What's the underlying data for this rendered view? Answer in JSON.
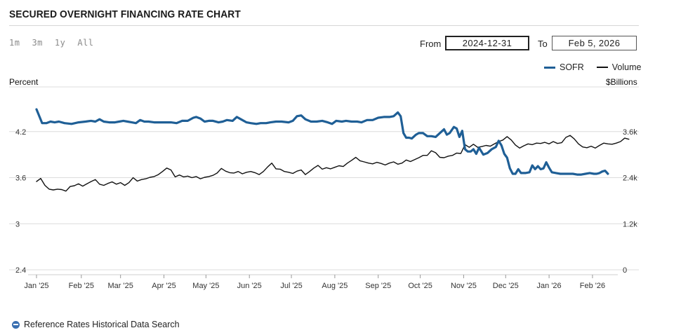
{
  "header": {
    "title": "SECURED OVERNIGHT FINANCING RATE CHART"
  },
  "range_buttons": [
    "1m",
    "3m",
    "1y",
    "All"
  ],
  "date_range": {
    "from_label": "From",
    "from_value": "2024-12-31",
    "to_label": "To",
    "to_value": "Feb 5, 2026"
  },
  "legend": [
    {
      "name": "SOFR",
      "color": "#1f5f96"
    },
    {
      "name": "Volume",
      "color": "#111111"
    }
  ],
  "footer": {
    "link_label": "Reference Rates Historical Data Search"
  },
  "chart_data": {
    "type": "line",
    "left_axis": {
      "title": "Percent",
      "ticks": [
        "4.2",
        "3.6",
        "3",
        "2.4"
      ],
      "range": [
        2.4,
        4.8
      ]
    },
    "right_axis": {
      "title": "$Billions",
      "ticks": [
        "3.6k",
        "2.4k",
        "1.2k",
        "0"
      ],
      "range": [
        0,
        4800
      ]
    },
    "x_ticks": [
      "Jan '25",
      "Feb '25",
      "Mar '25",
      "Apr '25",
      "May '25",
      "Jun '25",
      "Jul '25",
      "Aug '25",
      "Sep '25",
      "Oct '25",
      "Nov '25",
      "Dec '25",
      "Jan '26",
      "Feb '26"
    ],
    "grid": true,
    "legend_position": "top-right",
    "series": [
      {
        "name": "SOFR",
        "axis": "left",
        "color": "#1f5f96",
        "points": [
          [
            0,
            4.49
          ],
          [
            2,
            4.4
          ],
          [
            4,
            4.31
          ],
          [
            7,
            4.31
          ],
          [
            10,
            4.33
          ],
          [
            13,
            4.32
          ],
          [
            16,
            4.33
          ],
          [
            20,
            4.31
          ],
          [
            25,
            4.3
          ],
          [
            30,
            4.32
          ],
          [
            35,
            4.33
          ],
          [
            39,
            4.34
          ],
          [
            42,
            4.33
          ],
          [
            45,
            4.36
          ],
          [
            48,
            4.33
          ],
          [
            52,
            4.32
          ],
          [
            56,
            4.32
          ],
          [
            59,
            4.33
          ],
          [
            62,
            4.34
          ],
          [
            65,
            4.33
          ],
          [
            68,
            4.32
          ],
          [
            71,
            4.31
          ],
          [
            74,
            4.35
          ],
          [
            77,
            4.33
          ],
          [
            80,
            4.33
          ],
          [
            84,
            4.32
          ],
          [
            88,
            4.32
          ],
          [
            92,
            4.32
          ],
          [
            96,
            4.32
          ],
          [
            100,
            4.31
          ],
          [
            104,
            4.34
          ],
          [
            108,
            4.34
          ],
          [
            112,
            4.38
          ],
          [
            114,
            4.39
          ],
          [
            117,
            4.37
          ],
          [
            120,
            4.33
          ],
          [
            123,
            4.34
          ],
          [
            126,
            4.34
          ],
          [
            130,
            4.32
          ],
          [
            133,
            4.33
          ],
          [
            136,
            4.35
          ],
          [
            140,
            4.34
          ],
          [
            143,
            4.39
          ],
          [
            146,
            4.36
          ],
          [
            150,
            4.32
          ],
          [
            153,
            4.31
          ],
          [
            157,
            4.3
          ],
          [
            160,
            4.31
          ],
          [
            164,
            4.31
          ],
          [
            167,
            4.32
          ],
          [
            171,
            4.33
          ],
          [
            175,
            4.33
          ],
          [
            180,
            4.32
          ],
          [
            183,
            4.34
          ],
          [
            186,
            4.4
          ],
          [
            189,
            4.41
          ],
          [
            192,
            4.36
          ],
          [
            196,
            4.33
          ],
          [
            200,
            4.33
          ],
          [
            204,
            4.34
          ],
          [
            208,
            4.32
          ],
          [
            211,
            4.3
          ],
          [
            214,
            4.34
          ],
          [
            218,
            4.33
          ],
          [
            221,
            4.34
          ],
          [
            225,
            4.33
          ],
          [
            229,
            4.33
          ],
          [
            232,
            4.32
          ],
          [
            236,
            4.35
          ],
          [
            240,
            4.35
          ],
          [
            244,
            4.38
          ],
          [
            248,
            4.39
          ],
          [
            252,
            4.39
          ],
          [
            255,
            4.4
          ],
          [
            258,
            4.45
          ],
          [
            260,
            4.4
          ],
          [
            262,
            4.18
          ],
          [
            264,
            4.12
          ],
          [
            266,
            4.12
          ],
          [
            268,
            4.11
          ],
          [
            271,
            4.16
          ],
          [
            273,
            4.18
          ],
          [
            276,
            4.18
          ],
          [
            279,
            4.14
          ],
          [
            282,
            4.14
          ],
          [
            285,
            4.13
          ],
          [
            288,
            4.18
          ],
          [
            291,
            4.23
          ],
          [
            293,
            4.16
          ],
          [
            295,
            4.18
          ],
          [
            298,
            4.26
          ],
          [
            300,
            4.24
          ],
          [
            302,
            4.13
          ],
          [
            304,
            4.21
          ],
          [
            306,
            3.97
          ],
          [
            308,
            3.94
          ],
          [
            310,
            3.94
          ],
          [
            312,
            3.97
          ],
          [
            314,
            3.91
          ],
          [
            316,
            3.99
          ],
          [
            319,
            3.9
          ],
          [
            322,
            3.92
          ],
          [
            325,
            3.97
          ],
          [
            328,
            4.0
          ],
          [
            330,
            4.08
          ],
          [
            332,
            4.02
          ],
          [
            334,
            3.91
          ],
          [
            336,
            3.86
          ],
          [
            338,
            3.72
          ],
          [
            340,
            3.65
          ],
          [
            342,
            3.65
          ],
          [
            344,
            3.71
          ],
          [
            346,
            3.66
          ],
          [
            349,
            3.66
          ],
          [
            352,
            3.67
          ],
          [
            354,
            3.76
          ],
          [
            356,
            3.71
          ],
          [
            358,
            3.75
          ],
          [
            360,
            3.71
          ],
          [
            362,
            3.72
          ],
          [
            364,
            3.8
          ],
          [
            366,
            3.73
          ],
          [
            368,
            3.67
          ],
          [
            371,
            3.66
          ],
          [
            374,
            3.65
          ],
          [
            377,
            3.65
          ],
          [
            380,
            3.65
          ],
          [
            383,
            3.65
          ],
          [
            386,
            3.64
          ],
          [
            389,
            3.64
          ],
          [
            392,
            3.65
          ],
          [
            395,
            3.66
          ],
          [
            398,
            3.65
          ],
          [
            400,
            3.65
          ],
          [
            402,
            3.66
          ],
          [
            404,
            3.68
          ],
          [
            406,
            3.69
          ],
          [
            408,
            3.65
          ]
        ]
      },
      {
        "name": "Volume",
        "axis": "right",
        "color": "#111111",
        "points": [
          [
            0,
            2300
          ],
          [
            3,
            2380
          ],
          [
            6,
            2200
          ],
          [
            9,
            2100
          ],
          [
            12,
            2080
          ],
          [
            15,
            2100
          ],
          [
            18,
            2090
          ],
          [
            21,
            2050
          ],
          [
            24,
            2170
          ],
          [
            27,
            2190
          ],
          [
            30,
            2240
          ],
          [
            33,
            2180
          ],
          [
            36,
            2240
          ],
          [
            39,
            2300
          ],
          [
            42,
            2350
          ],
          [
            45,
            2230
          ],
          [
            48,
            2200
          ],
          [
            51,
            2250
          ],
          [
            54,
            2290
          ],
          [
            57,
            2230
          ],
          [
            60,
            2270
          ],
          [
            63,
            2200
          ],
          [
            66,
            2270
          ],
          [
            69,
            2400
          ],
          [
            72,
            2310
          ],
          [
            75,
            2350
          ],
          [
            78,
            2370
          ],
          [
            81,
            2410
          ],
          [
            84,
            2430
          ],
          [
            87,
            2480
          ],
          [
            90,
            2560
          ],
          [
            93,
            2650
          ],
          [
            96,
            2600
          ],
          [
            99,
            2420
          ],
          [
            102,
            2470
          ],
          [
            105,
            2420
          ],
          [
            108,
            2440
          ],
          [
            111,
            2400
          ],
          [
            114,
            2430
          ],
          [
            117,
            2370
          ],
          [
            120,
            2410
          ],
          [
            123,
            2430
          ],
          [
            126,
            2460
          ],
          [
            129,
            2520
          ],
          [
            132,
            2640
          ],
          [
            135,
            2570
          ],
          [
            138,
            2530
          ],
          [
            141,
            2520
          ],
          [
            144,
            2560
          ],
          [
            147,
            2500
          ],
          [
            150,
            2540
          ],
          [
            153,
            2560
          ],
          [
            156,
            2530
          ],
          [
            159,
            2480
          ],
          [
            162,
            2560
          ],
          [
            165,
            2680
          ],
          [
            168,
            2780
          ],
          [
            171,
            2630
          ],
          [
            174,
            2620
          ],
          [
            177,
            2560
          ],
          [
            180,
            2540
          ],
          [
            183,
            2510
          ],
          [
            186,
            2570
          ],
          [
            189,
            2600
          ],
          [
            192,
            2480
          ],
          [
            195,
            2560
          ],
          [
            198,
            2650
          ],
          [
            201,
            2720
          ],
          [
            204,
            2620
          ],
          [
            207,
            2660
          ],
          [
            210,
            2630
          ],
          [
            213,
            2670
          ],
          [
            216,
            2710
          ],
          [
            219,
            2690
          ],
          [
            222,
            2780
          ],
          [
            225,
            2850
          ],
          [
            228,
            2930
          ],
          [
            231,
            2840
          ],
          [
            234,
            2810
          ],
          [
            237,
            2780
          ],
          [
            240,
            2760
          ],
          [
            243,
            2800
          ],
          [
            246,
            2770
          ],
          [
            249,
            2730
          ],
          [
            252,
            2780
          ],
          [
            255,
            2810
          ],
          [
            258,
            2750
          ],
          [
            261,
            2780
          ],
          [
            264,
            2860
          ],
          [
            267,
            2820
          ],
          [
            270,
            2870
          ],
          [
            273,
            2920
          ],
          [
            276,
            2980
          ],
          [
            279,
            2980
          ],
          [
            282,
            3100
          ],
          [
            285,
            3050
          ],
          [
            288,
            2930
          ],
          [
            291,
            2920
          ],
          [
            294,
            2960
          ],
          [
            297,
            2980
          ],
          [
            300,
            3040
          ],
          [
            303,
            3030
          ],
          [
            306,
            3260
          ],
          [
            309,
            3190
          ],
          [
            312,
            3270
          ],
          [
            315,
            3190
          ],
          [
            318,
            3210
          ],
          [
            321,
            3240
          ],
          [
            324,
            3220
          ],
          [
            327,
            3280
          ],
          [
            330,
            3340
          ],
          [
            333,
            3380
          ],
          [
            336,
            3470
          ],
          [
            339,
            3380
          ],
          [
            342,
            3250
          ],
          [
            345,
            3170
          ],
          [
            348,
            3230
          ],
          [
            351,
            3280
          ],
          [
            354,
            3260
          ],
          [
            357,
            3300
          ],
          [
            360,
            3290
          ],
          [
            363,
            3320
          ],
          [
            366,
            3280
          ],
          [
            369,
            3340
          ],
          [
            372,
            3290
          ],
          [
            375,
            3310
          ],
          [
            378,
            3450
          ],
          [
            381,
            3500
          ],
          [
            384,
            3410
          ],
          [
            387,
            3280
          ],
          [
            390,
            3200
          ],
          [
            393,
            3180
          ],
          [
            396,
            3220
          ],
          [
            399,
            3170
          ],
          [
            402,
            3240
          ],
          [
            405,
            3300
          ],
          [
            408,
            3280
          ],
          [
            411,
            3270
          ],
          [
            414,
            3300
          ],
          [
            417,
            3340
          ],
          [
            420,
            3430
          ],
          [
            423,
            3400
          ]
        ]
      }
    ]
  }
}
